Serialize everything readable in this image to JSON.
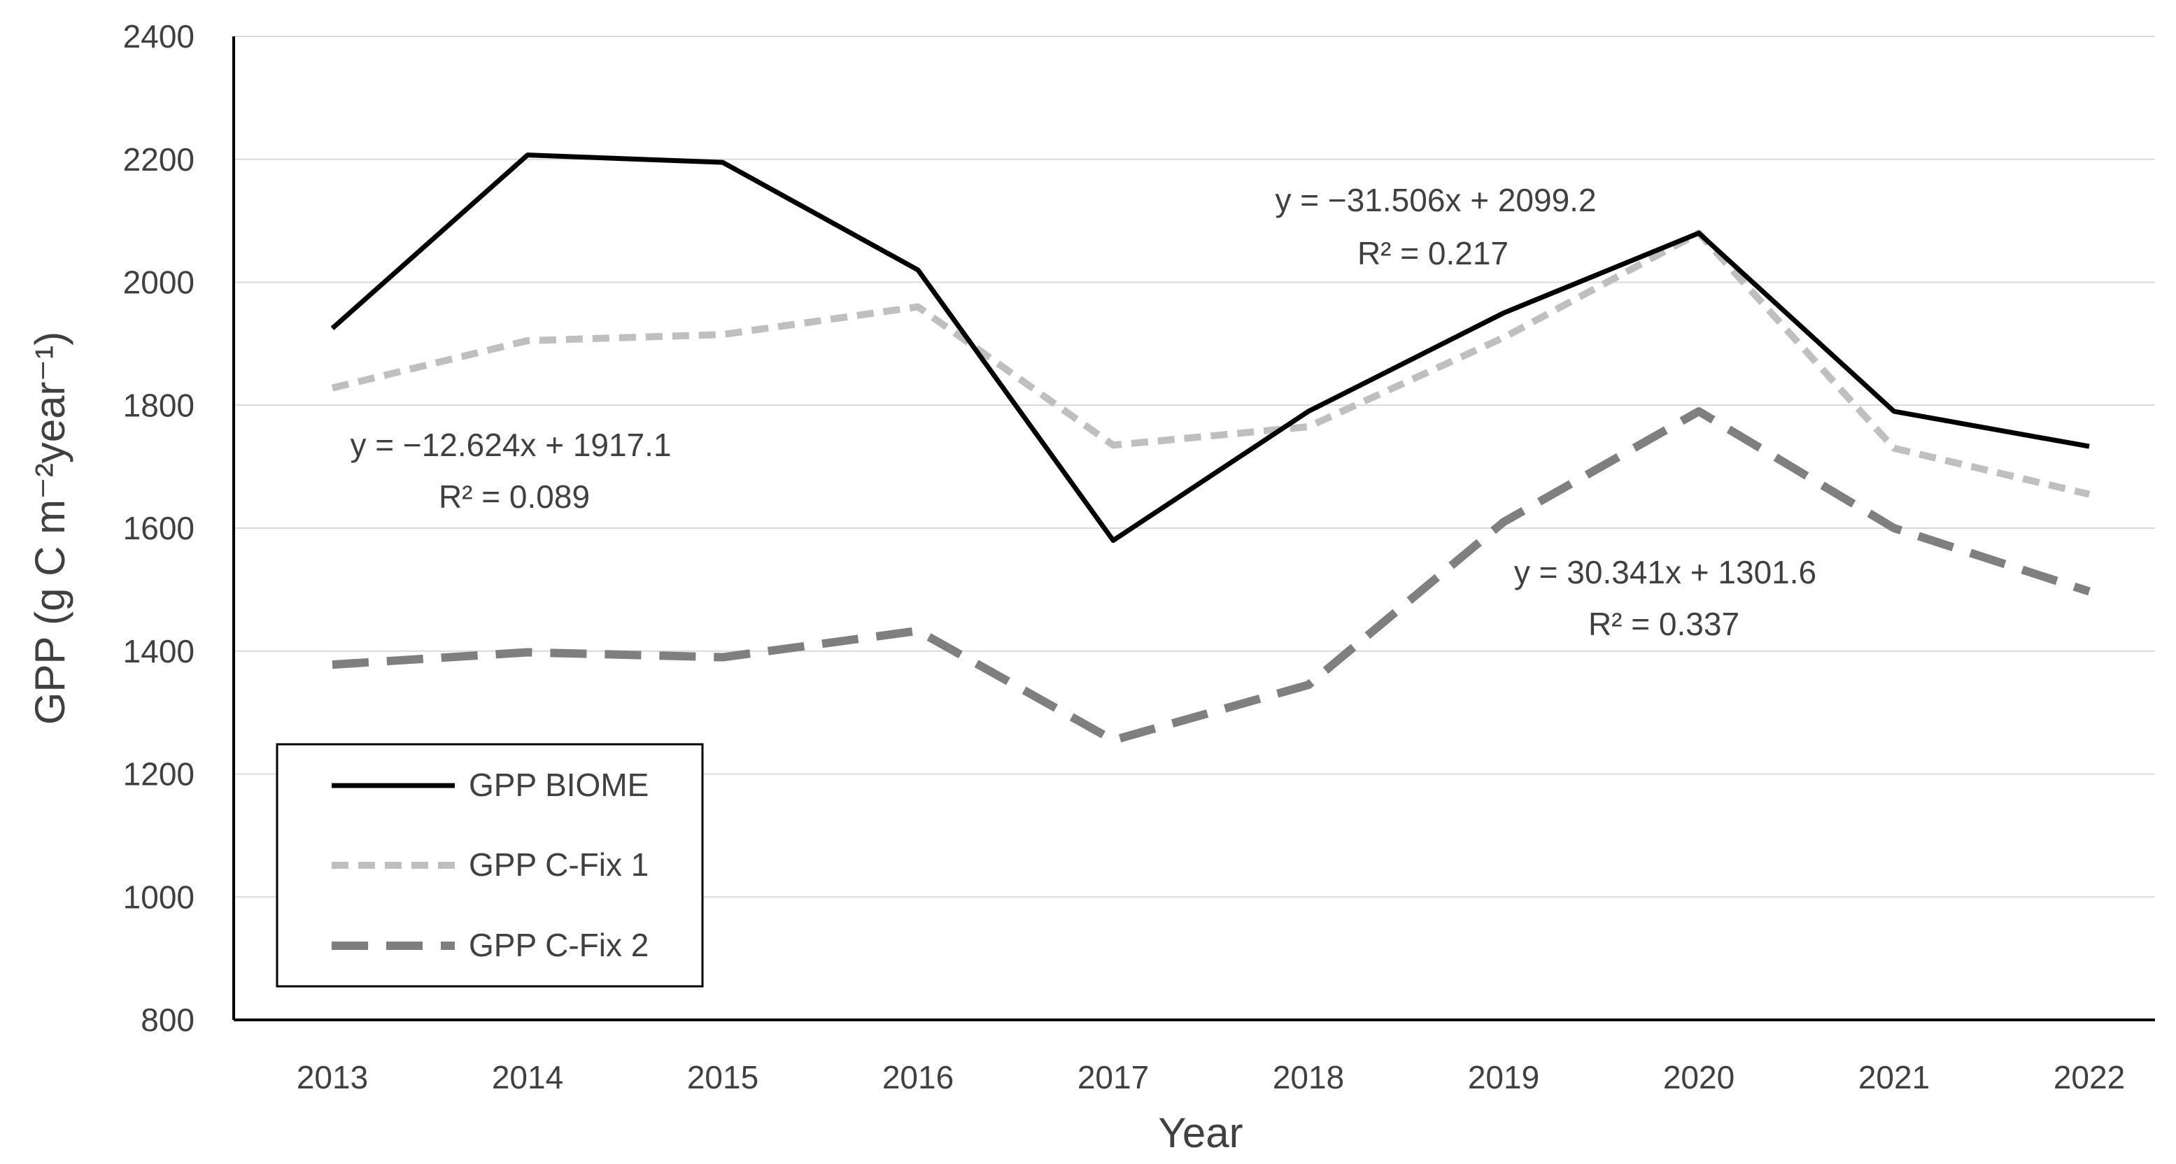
{
  "chart_data": {
    "type": "line",
    "title": "",
    "xlabel": "Year",
    "ylabel": "GPP (g C m⁻²year⁻¹)",
    "categories": [
      "2013",
      "2014",
      "2015",
      "2016",
      "2017",
      "2018",
      "2019",
      "2020",
      "2021",
      "2022"
    ],
    "ylim": [
      800,
      2400
    ],
    "yticks": [
      800,
      1000,
      1200,
      1400,
      1600,
      1800,
      2000,
      2200,
      2400
    ],
    "grid": true,
    "legend_position": "bottom-left",
    "series": [
      {
        "name": "GPP BIOME",
        "style": "solid",
        "color": "#000000",
        "values": [
          1925,
          2207,
          2195,
          2020,
          1580,
          1790,
          1950,
          2080,
          1790,
          1733
        ]
      },
      {
        "name": "GPP C-Fix 1",
        "style": "dash-short",
        "color": "#bfbfbf",
        "values": [
          1828,
          1905,
          1915,
          1960,
          1735,
          1765,
          1910,
          2080,
          1730,
          1655
        ]
      },
      {
        "name": "GPP C-Fix 2",
        "style": "dash-long",
        "color": "#7f7f7f",
        "values": [
          1378,
          1398,
          1390,
          1433,
          1255,
          1345,
          1610,
          1790,
          1600,
          1497
        ]
      }
    ],
    "annotations": [
      {
        "line1": "y = −12.624x + 1917.1",
        "line2": "R² = 0.089"
      },
      {
        "line1": "y = −31.506x + 2099.2",
        "line2": "R² = 0.217"
      },
      {
        "line1": "y = 30.341x + 1301.6",
        "line2": "R² = 0.337"
      }
    ]
  }
}
